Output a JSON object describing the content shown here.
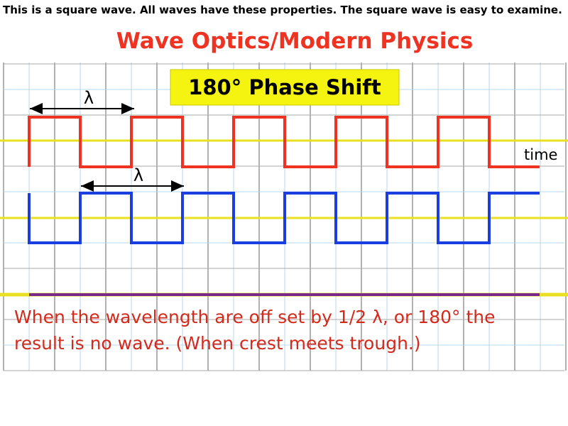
{
  "header": {
    "note": "This is a square wave. All waves have these properties. The square wave is easy to examine.",
    "title": "Wave Optics/Modern Physics"
  },
  "diagram": {
    "label": "180° Phase Shift",
    "wavelength_labels": [
      "λ",
      "λ"
    ],
    "axis_label": "time",
    "caption": "When the wavelength are off set by 1/2 λ, or 180° the result is no wave. (When crest meets trough.)"
  }
}
